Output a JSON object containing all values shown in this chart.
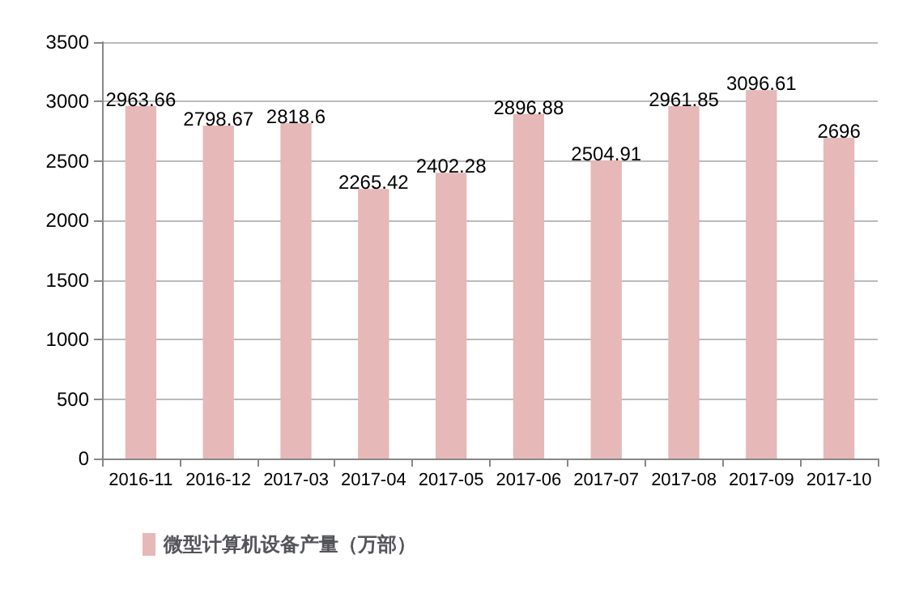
{
  "chart_data": {
    "type": "bar",
    "categories": [
      "2016-11",
      "2016-12",
      "2017-03",
      "2017-04",
      "2017-05",
      "2017-06",
      "2017-07",
      "2017-08",
      "2017-09",
      "2017-10"
    ],
    "series": [
      {
        "name": "微型计算机设备产量（万部）",
        "color": "#e6b8b7",
        "values": [
          2963.66,
          2798.67,
          2818.6,
          2265.42,
          2402.28,
          2896.88,
          2504.91,
          2961.85,
          3096.61,
          2696
        ]
      }
    ],
    "ylim": [
      0,
      3500
    ],
    "yticks": [
      0,
      500,
      1000,
      1500,
      2000,
      2500,
      3000,
      3500
    ],
    "grid": "y",
    "legend": "bottom left",
    "data_labels": true
  }
}
